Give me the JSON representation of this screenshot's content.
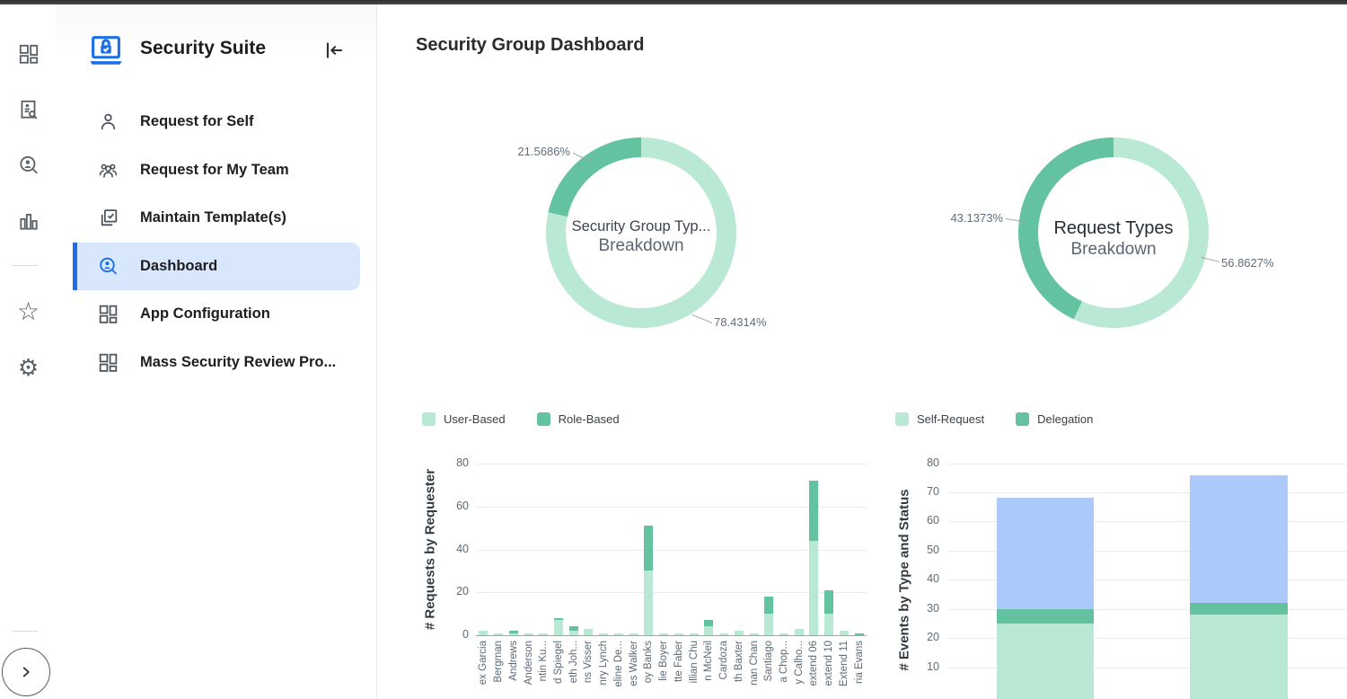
{
  "app": {
    "title": "Security Suite"
  },
  "rail": {
    "icons": [
      "dashboard-grid",
      "audit-search",
      "search-person",
      "bar-chart",
      "star",
      "settings-gear",
      "expand-chevron"
    ]
  },
  "sidebar": {
    "items": [
      {
        "label": "Request for Self",
        "icon": "person",
        "selected": false
      },
      {
        "label": "Request for My Team",
        "icon": "group",
        "selected": false
      },
      {
        "label": "Maintain Template(s)",
        "icon": "template-check",
        "selected": false
      },
      {
        "label": "Dashboard",
        "icon": "search-person",
        "selected": true
      },
      {
        "label": "App Configuration",
        "icon": "grid",
        "selected": false
      },
      {
        "label": "Mass Security Review Pro...",
        "icon": "grid",
        "selected": false
      }
    ]
  },
  "main": {
    "title": "Security Group Dashboard"
  },
  "colors": {
    "accent_blue": "#1a6fe8",
    "selected_bg": "#d8e7fb",
    "light_green": "#b9e8d5",
    "dark_green": "#63c2a0",
    "bar_blue": "#accaf9"
  },
  "chart_data": [
    {
      "type": "pie",
      "variant": "donut",
      "title": "Security Group Typ...",
      "subtitle": "Breakdown",
      "slices": [
        {
          "label": "78.4314%",
          "value": 78.4314,
          "color": "#b9e8d5"
        },
        {
          "label": "21.5686%",
          "value": 21.5686,
          "color": "#63c2a0"
        }
      ]
    },
    {
      "type": "pie",
      "variant": "donut",
      "title": "Request Types",
      "subtitle": "Breakdown",
      "slices": [
        {
          "label": "56.8627%",
          "value": 56.8627,
          "color": "#b9e8d5"
        },
        {
          "label": "43.1373%",
          "value": 43.1373,
          "color": "#63c2a0"
        }
      ]
    },
    {
      "type": "bar",
      "stacked": true,
      "legend": [
        "User-Based",
        "Role-Based"
      ],
      "legend_position": "top",
      "ylabel": "# Requests by Requester",
      "ylim": [
        0,
        80
      ],
      "yticks": [
        0,
        20,
        40,
        60,
        80
      ],
      "grid": true,
      "categories": [
        "ex Garcia",
        "Bergman",
        "Andrews",
        "Anderson",
        "ntin Ku...",
        "d Spiegel",
        "eth Joh...",
        "ns Visser",
        "nry Lynch",
        "eline De...",
        "es Walker",
        "oy Banks",
        "lie Boyer",
        "tte Faber",
        "illian Chu",
        "n McNeil",
        "Cardoza",
        "th Baxter",
        "nan Chan",
        "Santiago",
        "a Chop...",
        "y Calho...",
        "extend 06",
        "extend 10",
        "Extend 11",
        "ria Evans"
      ],
      "series": [
        {
          "name": "User-Based",
          "color": "#b9e8d5",
          "values": [
            2,
            1,
            1,
            1,
            1,
            7,
            2,
            3,
            1,
            1,
            1,
            30,
            1,
            1,
            1,
            4,
            1,
            2,
            1,
            10,
            1,
            3,
            44,
            10,
            2,
            0
          ]
        },
        {
          "name": "Role-Based",
          "color": "#63c2a0",
          "values": [
            0,
            0,
            1,
            0,
            0,
            1,
            2,
            0,
            0,
            0,
            0,
            21,
            0,
            0,
            0,
            3,
            0,
            0,
            0,
            8,
            0,
            0,
            28,
            11,
            0,
            1
          ]
        }
      ]
    },
    {
      "type": "bar",
      "stacked": true,
      "legend": [
        "Self-Request",
        "Delegation"
      ],
      "legend_position": "top",
      "ylabel": "# Events by Type and Status",
      "ylim": [
        0,
        80
      ],
      "yticks": [
        10,
        20,
        30,
        40,
        50,
        60,
        70,
        80
      ],
      "grid": true,
      "categories": [
        "",
        ""
      ],
      "series": [
        {
          "name": "Self-Request",
          "color": "#b9e8d5",
          "values": [
            25,
            28
          ]
        },
        {
          "name": "Delegation",
          "color": "#63c2a0",
          "values": [
            5,
            4
          ]
        },
        {
          "name": "",
          "color": "#accaf9",
          "values": [
            38,
            44
          ]
        }
      ]
    }
  ]
}
